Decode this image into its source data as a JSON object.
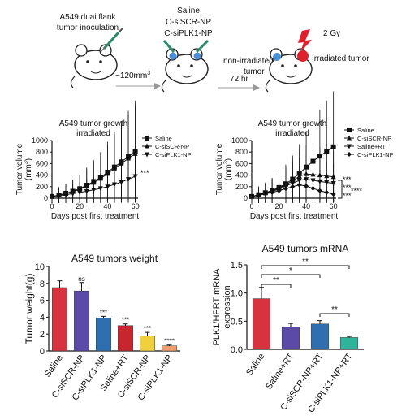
{
  "schematic": {
    "inoculation_label_1": "A549 duai flank",
    "inoculation_label_2": "tumor inoculation",
    "volume_label": "~120mm",
    "volume_superscript": "3",
    "treatment_1": "Saline",
    "treatment_2": "C-siSCR-NP",
    "treatment_3": "C-siPLK1-NP",
    "time_label": "72 hr",
    "non_irradiated_label_1": "non-irradiated",
    "non_irradiated_label_2": "tumor",
    "dose_label": "2 Gy",
    "irradiated_label": "Irradiated tumor",
    "colors": {
      "non_irradiated_tumor": "#4a90d9",
      "irradiated_tumor": "#e0202a",
      "lightning": "#e0202a"
    }
  },
  "chart_data": [
    {
      "type": "line",
      "title": "A549 tumor growth",
      "subtitle": "irradiated",
      "xlabel": "Days post first treatment",
      "ylabel": "Tumor volume",
      "ylabel_unit": "(mm",
      "ylabel_unit_sup": "3",
      "ylabel_unit_close": ")",
      "x": [
        0,
        5,
        10,
        15,
        20,
        25,
        30,
        35,
        40,
        45,
        50,
        55,
        60
      ],
      "xticks": [
        "0",
        "20",
        "40",
        "60"
      ],
      "yticks": [
        "0",
        "200",
        "400",
        "600",
        "800",
        "1000"
      ],
      "xlim": [
        0,
        62
      ],
      "ylim": [
        0,
        1000
      ],
      "legend_position": "top-right",
      "series": [
        {
          "name": "Saline",
          "marker": "square",
          "values": [
            30,
            55,
            85,
            120,
            165,
            225,
            290,
            360,
            450,
            540,
            630,
            720,
            810
          ]
        },
        {
          "name": "C-siSCR-NP",
          "marker": "triangle",
          "values": [
            30,
            52,
            80,
            112,
            155,
            210,
            270,
            340,
            425,
            515,
            600,
            690,
            770
          ]
        },
        {
          "name": "C-siPLK1-NP",
          "marker": "triangle-down",
          "values": [
            30,
            45,
            62,
            80,
            100,
            122,
            145,
            170,
            200,
            240,
            280,
            330,
            380
          ]
        }
      ],
      "annotations": [
        "***"
      ]
    },
    {
      "type": "line",
      "title": "A549 tumor growth",
      "subtitle": "irradiated",
      "xlabel": "Days post first treatment",
      "ylabel": "Tumor volume",
      "ylabel_unit": "(mm",
      "ylabel_unit_sup": "3",
      "ylabel_unit_close": ")",
      "x": [
        0,
        5,
        10,
        15,
        20,
        25,
        30,
        35,
        40,
        45,
        50,
        55,
        60
      ],
      "xticks": [
        "0",
        "20",
        "40",
        "60"
      ],
      "yticks": [
        "0",
        "200",
        "400",
        "600",
        "800",
        "1000"
      ],
      "xlim": [
        0,
        62
      ],
      "ylim": [
        0,
        1000
      ],
      "legend_position": "top-right",
      "series": [
        {
          "name": "Saline",
          "marker": "square",
          "values": [
            30,
            60,
            95,
            135,
            185,
            250,
            330,
            430,
            540,
            640,
            730,
            810,
            890
          ]
        },
        {
          "name": "C-siSCR-NP",
          "marker": "triangle",
          "values": [
            30,
            58,
            90,
            128,
            175,
            235,
            300,
            380,
            420,
            410,
            400,
            385,
            370
          ]
        },
        {
          "name": "Saline+RT",
          "marker": "triangle-down",
          "values": [
            30,
            55,
            85,
            118,
            160,
            210,
            260,
            310,
            330,
            310,
            290,
            275,
            260
          ]
        },
        {
          "name": "C-siPLK1-NP",
          "marker": "diamond",
          "values": [
            30,
            50,
            75,
            100,
            130,
            165,
            200,
            230,
            210,
            170,
            130,
            100,
            70
          ]
        }
      ],
      "annotations": [
        "***",
        "***",
        "***",
        "****"
      ]
    },
    {
      "type": "bar",
      "title": "A549 tumors weight",
      "ylabel": "Tumor weight(g)",
      "categories": [
        "Saline",
        "C-siSCR-NP",
        "C-siPLK1-NP",
        "Saline+RT",
        "C-siSCR-NP",
        "C-siPLK1-NP"
      ],
      "values": [
        7.5,
        7.1,
        3.9,
        3.0,
        1.8,
        0.6
      ],
      "errors": [
        0.8,
        1.0,
        0.2,
        0.2,
        0.4,
        0.1
      ],
      "colors": [
        "#d8323f",
        "#5b4aa8",
        "#2f6fb0",
        "#c8262e",
        "#f0d03c",
        "#f0a070"
      ],
      "annotations": [
        "",
        "ns",
        "***",
        "***",
        "***",
        "****"
      ],
      "ylim": [
        0,
        10
      ],
      "yticks": [
        "0",
        "2",
        "4",
        "6",
        "8",
        "10"
      ]
    },
    {
      "type": "bar",
      "title": "A549 tumors mRNA",
      "ylabel": "PLK1/HPRT mRNA expression",
      "categories": [
        "Saline",
        "Saline+RT",
        "C-siSCR-NP+RT",
        "C-siPLK1-NP+RT"
      ],
      "values": [
        0.9,
        0.4,
        0.45,
        0.21
      ],
      "errors": [
        0.2,
        0.06,
        0.06,
        0.02
      ],
      "colors": [
        "#d8323f",
        "#5b4aa8",
        "#2f6fb0",
        "#2fb39a"
      ],
      "significance": [
        {
          "from": 0,
          "to": 1,
          "label": "**"
        },
        {
          "from": 0,
          "to": 2,
          "label": "*"
        },
        {
          "from": 0,
          "to": 3,
          "label": "**"
        },
        {
          "from": 2,
          "to": 3,
          "label": "**"
        }
      ],
      "ylim": [
        0,
        1.5
      ],
      "yticks": [
        "0.0",
        "0.5",
        "1.0",
        "1.5"
      ]
    }
  ]
}
